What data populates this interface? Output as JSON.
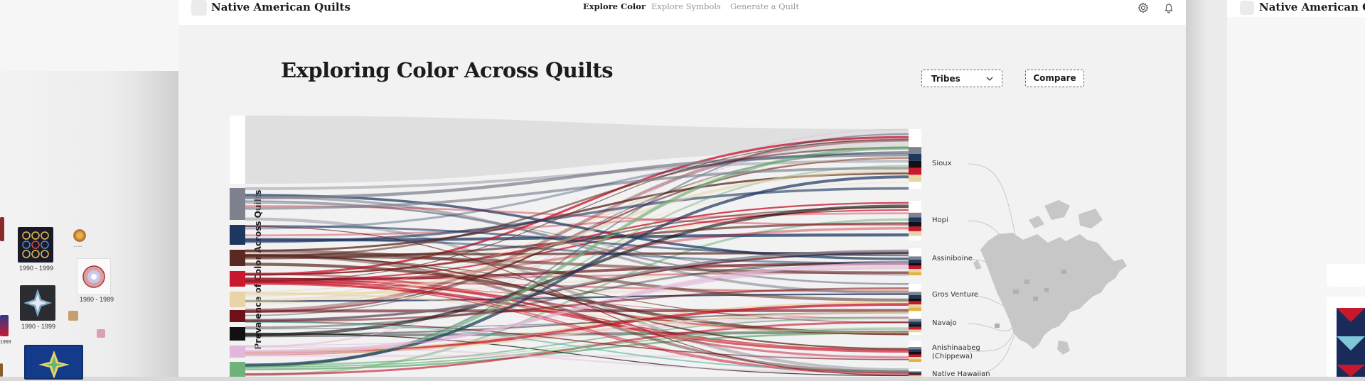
{
  "app": {
    "brand": "Native American Quilts"
  },
  "nav": {
    "links": [
      {
        "label": "Explore Color",
        "active": true
      },
      {
        "label": "Explore Symbols",
        "active": false
      },
      {
        "label": "Generate a Quilt",
        "active": false
      }
    ],
    "icons": [
      "gear-icon",
      "bell-icon"
    ]
  },
  "page": {
    "title": "Exploring Color Across Quilts"
  },
  "controls": {
    "filter_label": "Tribes",
    "compare_label": "Compare"
  },
  "chart": {
    "ylabel": "Prevalence of Color Across Quilts",
    "colors": [
      "#ffffff",
      "#7e818e",
      "#1d3760",
      "#5a2a22",
      "#c9182e",
      "#e8d4a6",
      "#6f0f17",
      "#111111",
      "#e2b7d9",
      "#6fb27c"
    ],
    "tribes": [
      "Sioux",
      "Hopi",
      "Assiniboine",
      "Gros Venture",
      "Navajo",
      "Anishinaabeg (Chippewa)",
      "Native Hawaiian"
    ],
    "accent_colors": [
      "#e3b43a",
      "#5fb8a9",
      "#2f4f86",
      "#c9182e"
    ]
  },
  "left_panel": {
    "year_labels": [
      "1990 - 1999",
      "1980 - 1989",
      "1990 - 1999",
      "1969"
    ]
  },
  "right_panel": {
    "brand": "Native American Quilts"
  }
}
